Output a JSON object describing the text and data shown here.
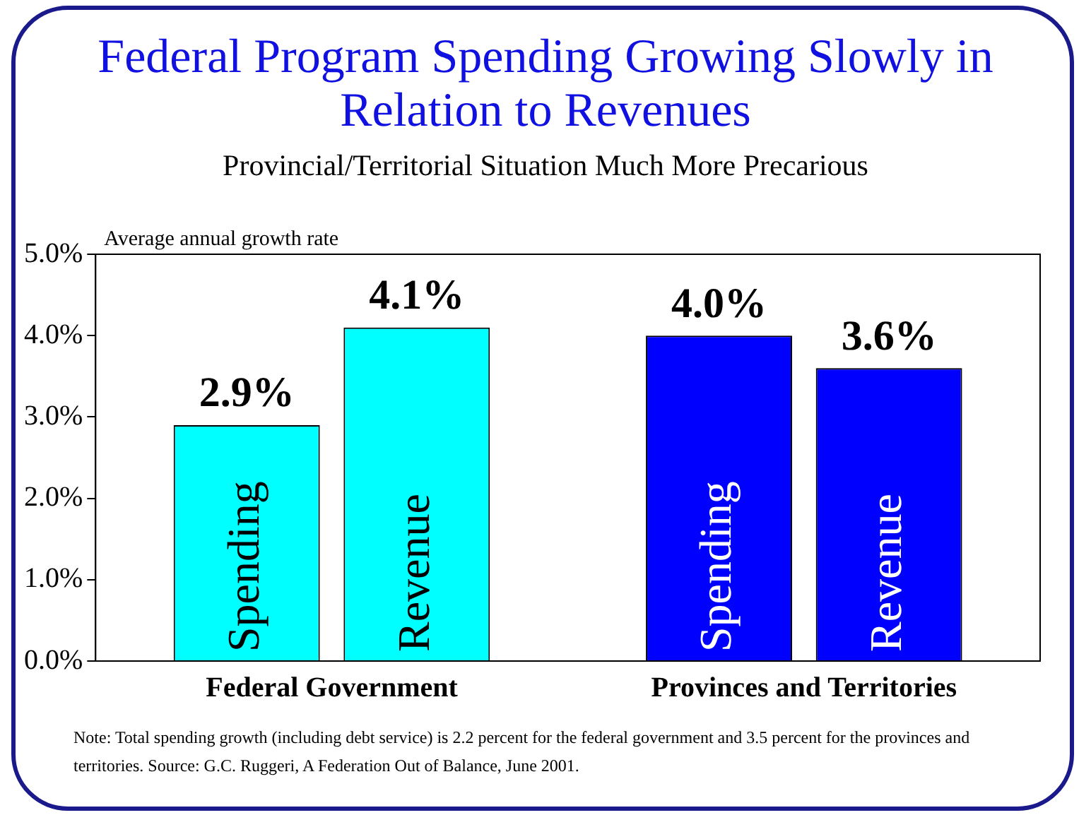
{
  "chart_data": {
    "type": "bar",
    "title": "Federal Program Spending Growing Slowly in Relation to Revenues",
    "subtitle": "Provincial/Territorial Situation Much More Precarious",
    "ylabel": "Average annual growth rate",
    "categories": [
      "Federal Government",
      "Provinces and Territories"
    ],
    "series": [
      {
        "name": "Spending",
        "colors": [
          "#00ffff",
          "#0000ff"
        ],
        "values": [
          2.9,
          4.0
        ],
        "value_labels": [
          "2.9%",
          "4.0%"
        ]
      },
      {
        "name": "Revenue",
        "colors": [
          "#00ffff",
          "#0000ff"
        ],
        "values": [
          4.1,
          3.6
        ],
        "value_labels": [
          "4.1%",
          "3.6%"
        ]
      }
    ],
    "ylim": [
      0,
      5
    ],
    "yticks": [
      {
        "value": 0,
        "label": "0.0%"
      },
      {
        "value": 1,
        "label": "1.0%"
      },
      {
        "value": 2,
        "label": "2.0%"
      },
      {
        "value": 3,
        "label": "3.0%"
      },
      {
        "value": 4,
        "label": "4.0%"
      },
      {
        "value": 5,
        "label": "5.0%"
      }
    ],
    "grid": false,
    "legend": false,
    "annotations": [
      "Note: Total spending growth (including debt service) is 2.2 percent for the federal government and 3.5 percent for the provinces and territories. Source:  G.C. Ruggeri, A Federation Out of Balance, June 2001."
    ]
  }
}
